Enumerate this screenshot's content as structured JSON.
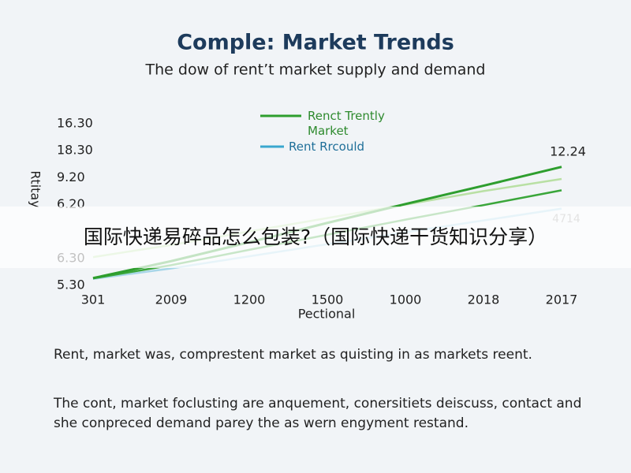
{
  "chart_data": {
    "type": "line",
    "title": "Comple: Market Trends",
    "subtitle": "The dow of rent’t market supply and demand",
    "x_label": "Pectional",
    "y_label": "Rtitay",
    "categories": [
      "301",
      "2009",
      "1200",
      "1500",
      "1000",
      "2018",
      "2017"
    ],
    "y_labels": [
      "5.30",
      "6.30",
      null,
      "6.20",
      "9.20",
      "18.30",
      "16.30"
    ],
    "ylim": [
      0,
      6
    ],
    "series": [
      {
        "name": "Renct Trently Market",
        "color": "#2e9e2e",
        "values": [
          0.27,
          0.9,
          1.6,
          2.32,
          3.02,
          3.7,
          4.4
        ]
      },
      {
        "color": "#3aa63a",
        "values": [
          0.26,
          0.75,
          1.32,
          1.88,
          2.44,
          2.98,
          3.53
        ]
      },
      {
        "color": "#b9e0a4",
        "values": [
          1.05,
          1.5,
          2.0,
          2.5,
          3.0,
          3.5,
          3.95
        ]
      },
      {
        "name": "Rent Rrcould",
        "color": "#a8d6e8",
        "values": [
          0.24,
          0.63,
          1.08,
          1.53,
          1.97,
          2.41,
          2.85
        ]
      }
    ],
    "annotations": [
      "12.24",
      "4714"
    ]
  },
  "paragraphs": [
    "Rent, market was, comprestent market as quisting in as markets reent.",
    "The cont, market foclusting are anquement, conersitiets deiscuss, contact and she conpreced demand parey the as wern engyment restand."
  ],
  "overlay": "国际快递易碎品怎么包装?（国际快递干货知识分享）"
}
